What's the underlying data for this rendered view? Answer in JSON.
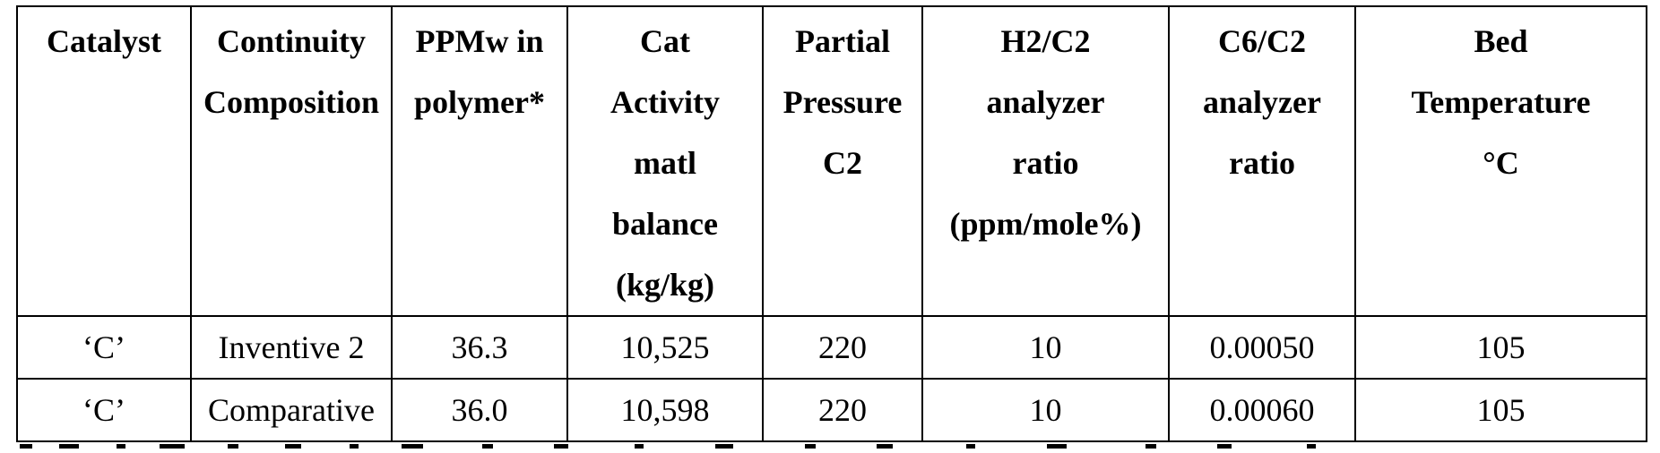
{
  "table": {
    "headers": [
      [
        "Catalyst"
      ],
      [
        "Continuity",
        "Composition"
      ],
      [
        "PPMw in",
        "polymer*"
      ],
      [
        "Cat",
        "Activity",
        "matl",
        "balance",
        "(kg/kg)"
      ],
      [
        "Partial",
        "Pressure",
        "C2"
      ],
      [
        "H2/C2",
        "analyzer",
        "ratio",
        "(ppm/mole%)"
      ],
      [
        "C6/C2",
        "analyzer",
        "ratio"
      ],
      [
        "Bed",
        "Temperature",
        "°C"
      ]
    ],
    "rows": [
      [
        "‘C’",
        "Inventive 2",
        "36.3",
        "10,525",
        "220",
        "10",
        "0.00050",
        "105"
      ],
      [
        "‘C’",
        "Comparative",
        "36.0",
        "10,598",
        "220",
        "10",
        "0.00060",
        "105"
      ]
    ]
  }
}
